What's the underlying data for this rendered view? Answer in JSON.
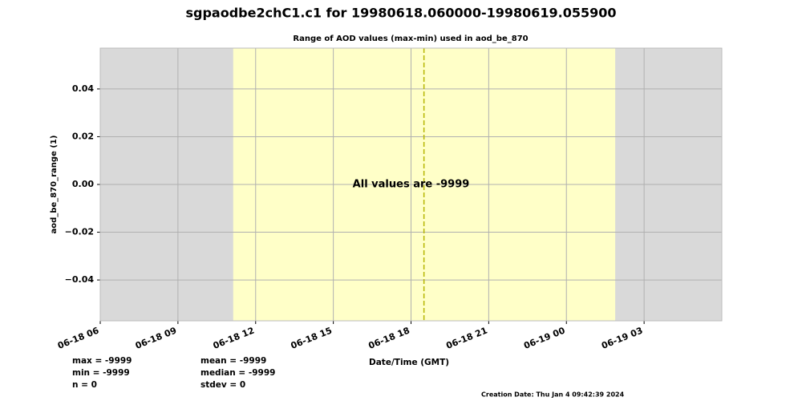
{
  "chart_data": {
    "type": "timeline",
    "title": "sgpaodbe2chC1.c1 for 19980618.060000-19980619.055900",
    "subtitle": "Range of AOD values (max-min) used in aod_be_870",
    "y_label": "aod_be_870_range (1)",
    "x_label": "Date/Time (GMT)",
    "annotation": "All values are -9999",
    "xlim": [
      "06-18 06",
      "06-19 06"
    ],
    "xticks": [
      "06-18 06",
      "06-18 09",
      "06-18 12",
      "06-18 15",
      "06-18 18",
      "06-18 21",
      "06-19 00",
      "06-19 03"
    ],
    "ylim": [
      -0.0571,
      0.0571
    ],
    "yticks": [
      {
        "value": -0.04,
        "label": "−0.04"
      },
      {
        "value": -0.02,
        "label": "−0.02"
      },
      {
        "value": 0,
        "label": "0.00"
      },
      {
        "value": 0.02,
        "label": "0.02"
      },
      {
        "value": 0.04,
        "label": "0.04"
      }
    ],
    "grid": true,
    "night_color": "#d9d9d9",
    "day_color": "#ffffc8",
    "daylight": [
      "06-18 11:08",
      "06-19 01:53"
    ],
    "solar_noon": "06-18 18:30",
    "noon_color": "#b5b500",
    "stats": [
      "max = -9999",
      "min = -9999",
      "n = 0",
      "mean = -9999",
      "median = -9999",
      "stdev = 0"
    ],
    "creation_date": "Creation Date: Thu Jan  4 09:42:39 2024"
  }
}
